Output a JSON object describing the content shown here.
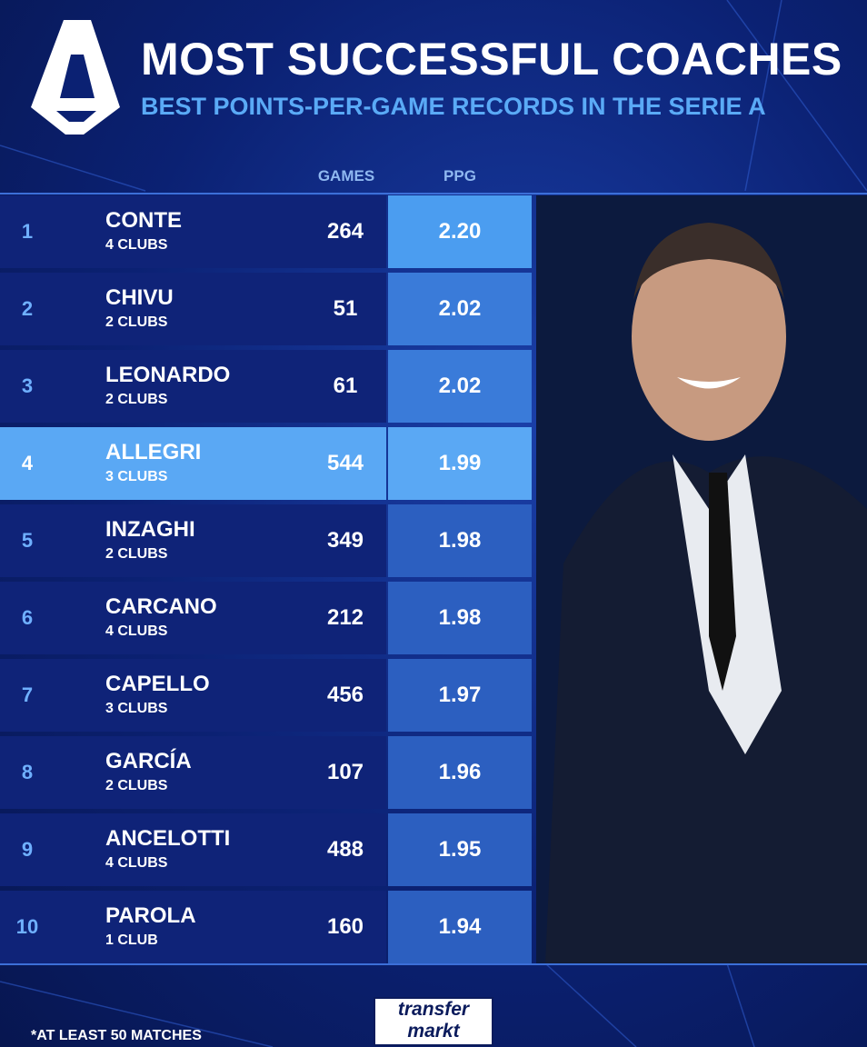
{
  "header": {
    "title": "MOST SUCCESSFUL COACHES",
    "subtitle": "BEST POINTS-PER-GAME RECORDS IN THE SERIE A"
  },
  "table": {
    "columns": [
      "GAMES",
      "PPG"
    ],
    "rows": [
      {
        "rank": 1,
        "name": "CONTE",
        "clubs": "4 CLUBS",
        "games": 264,
        "ppg": "2.20"
      },
      {
        "rank": 2,
        "name": "CHIVU",
        "clubs": "2 CLUBS",
        "games": 51,
        "ppg": "2.02"
      },
      {
        "rank": 3,
        "name": "LEONARDO",
        "clubs": "2 CLUBS",
        "games": 61,
        "ppg": "2.02"
      },
      {
        "rank": 4,
        "name": "ALLEGRI",
        "clubs": "3 CLUBS",
        "games": 544,
        "ppg": "1.99"
      },
      {
        "rank": 5,
        "name": "INZAGHI",
        "clubs": "2 CLUBS",
        "games": 349,
        "ppg": "1.98"
      },
      {
        "rank": 6,
        "name": "CARCANO",
        "clubs": "4 CLUBS",
        "games": 212,
        "ppg": "1.98"
      },
      {
        "rank": 7,
        "name": "CAPELLO",
        "clubs": "3 CLUBS",
        "games": 456,
        "ppg": "1.97"
      },
      {
        "rank": 8,
        "name": "GARCÍA",
        "clubs": "2 CLUBS",
        "games": 107,
        "ppg": "1.96"
      },
      {
        "rank": 9,
        "name": "ANCELOTTI",
        "clubs": "4 CLUBS",
        "games": 488,
        "ppg": "1.95"
      },
      {
        "rank": 10,
        "name": "PAROLA",
        "clubs": "1 CLUB",
        "games": 160,
        "ppg": "1.94"
      }
    ]
  },
  "footer": {
    "note": "*AT LEAST 50 MATCHES",
    "logo_top": "transfer",
    "logo_bottom": "markt"
  }
}
